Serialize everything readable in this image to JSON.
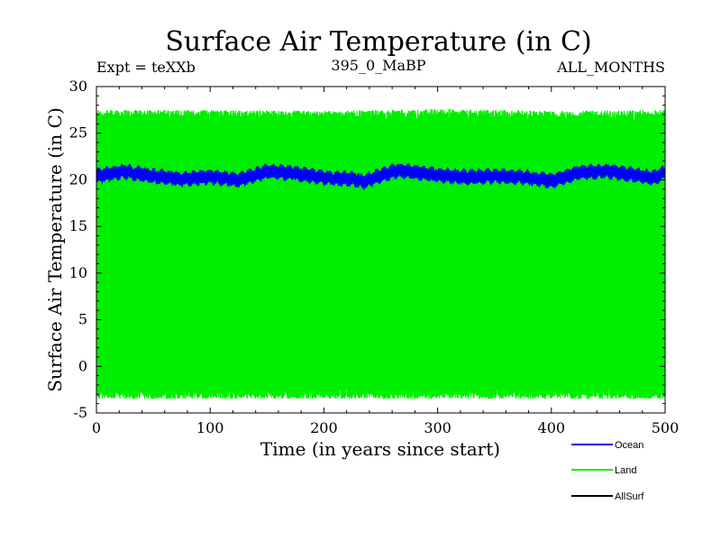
{
  "chart_data": {
    "type": "line",
    "title": "Surface Air Temperature (in C)",
    "subtitle_left": "Expt = teXXb",
    "subtitle_center": "395_0_MaBP",
    "subtitle_right": "ALL_MONTHS",
    "xlabel": "Time (in years since start)",
    "ylabel": "Surface Air Temperature (in C)",
    "xlim": [
      0,
      500
    ],
    "ylim": [
      -5,
      30
    ],
    "x_ticks": [
      "0",
      "100",
      "200",
      "300",
      "400",
      "500"
    ],
    "y_ticks": [
      "-5",
      "0",
      "5",
      "10",
      "15",
      "20",
      "25",
      "30"
    ],
    "grid": false,
    "legend_position": "bottom-right",
    "series": [
      {
        "name": "Ocean",
        "color": "#0000ff",
        "description": "monthly oscillation about annual mean",
        "x": [
          0,
          25,
          50,
          75,
          100,
          125,
          150,
          175,
          200,
          225,
          235,
          250,
          265,
          275,
          300,
          325,
          350,
          375,
          400,
          425,
          450,
          475,
          490,
          500
        ],
        "mean": [
          20.4,
          20.9,
          20.4,
          20.1,
          20.3,
          20.0,
          20.9,
          20.7,
          20.2,
          20.1,
          19.8,
          20.5,
          21.0,
          20.9,
          20.5,
          20.3,
          20.4,
          20.3,
          19.9,
          20.8,
          20.9,
          20.5,
          20.2,
          20.8
        ],
        "amplitude": 0.7
      },
      {
        "name": "Land",
        "color": "#00ee00",
        "description": "monthly oscillation between winter minima and summer maxima",
        "x": [
          0,
          100,
          200,
          300,
          400,
          500
        ],
        "max_values": [
          26.8,
          26.8,
          26.7,
          26.9,
          26.7,
          26.8
        ],
        "min_values": [
          -2.8,
          -2.8,
          -2.8,
          -2.8,
          -2.8,
          -2.8
        ]
      },
      {
        "name": "AllSurf",
        "color": "#000000",
        "x": [],
        "values": []
      }
    ]
  }
}
